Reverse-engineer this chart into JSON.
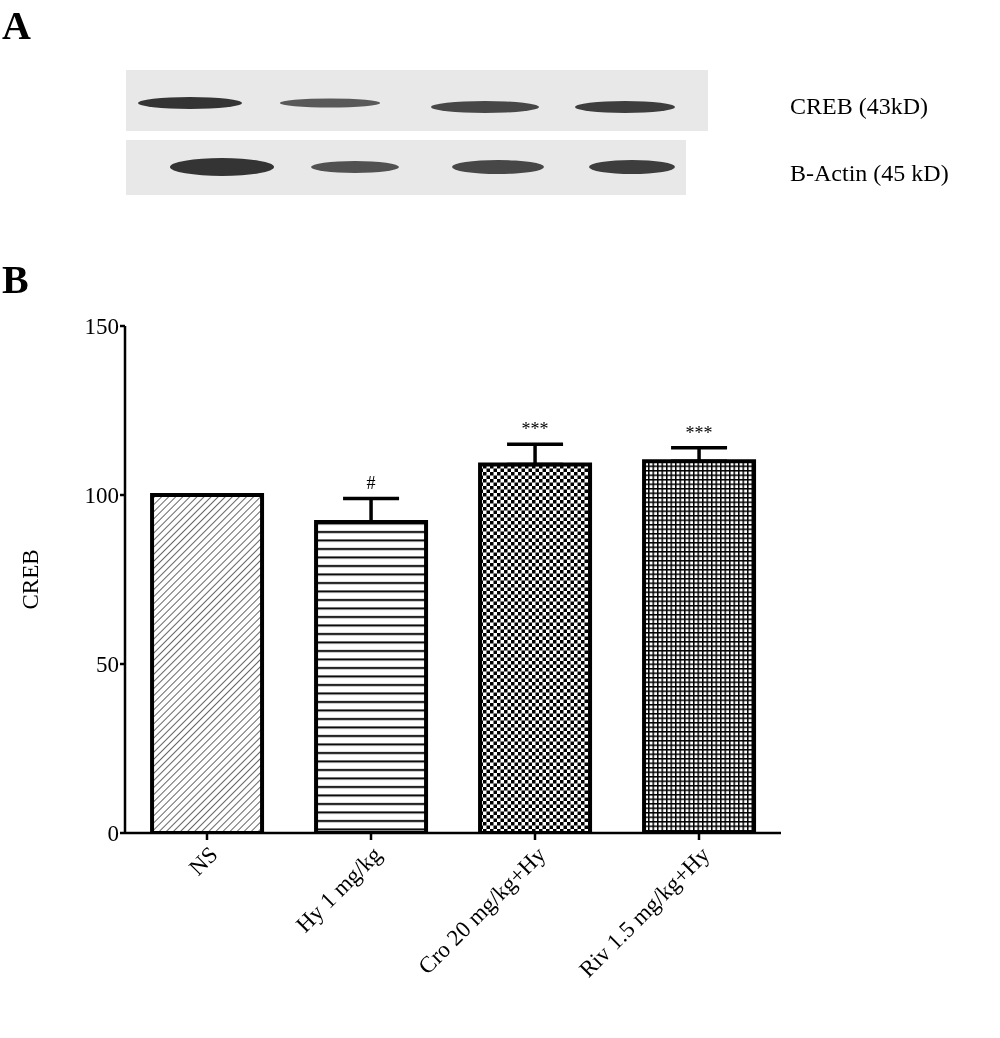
{
  "chart_data": {
    "type": "bar",
    "categories": [
      "NS",
      "Hy 1 mg/kg",
      "Cro 20 mg/kg+Hy",
      "Riv 1.5 mg/kg+Hy"
    ],
    "values": [
      100,
      92,
      109,
      110
    ],
    "errors": [
      null,
      [
        92,
        99
      ],
      [
        109,
        115
      ],
      [
        110,
        114
      ]
    ],
    "color": "#000000",
    "ylabel": "CREB",
    "ylim": [
      0,
      150
    ],
    "yticks": [
      0,
      50,
      100,
      150
    ],
    "annotations": [
      "A",
      "B",
      "CREB (43kD)",
      "B-Actin (45 kD)",
      {
        "text": "#",
        "x": "Hy 1 mg/kg",
        "y": 99
      },
      {
        "text": "***",
        "x": "Cro 20 mg/kg+Hy",
        "y": 115
      },
      {
        "text": "***",
        "x": "Riv 1.5 mg/kg+Hy",
        "y": 114
      }
    ]
  }
}
